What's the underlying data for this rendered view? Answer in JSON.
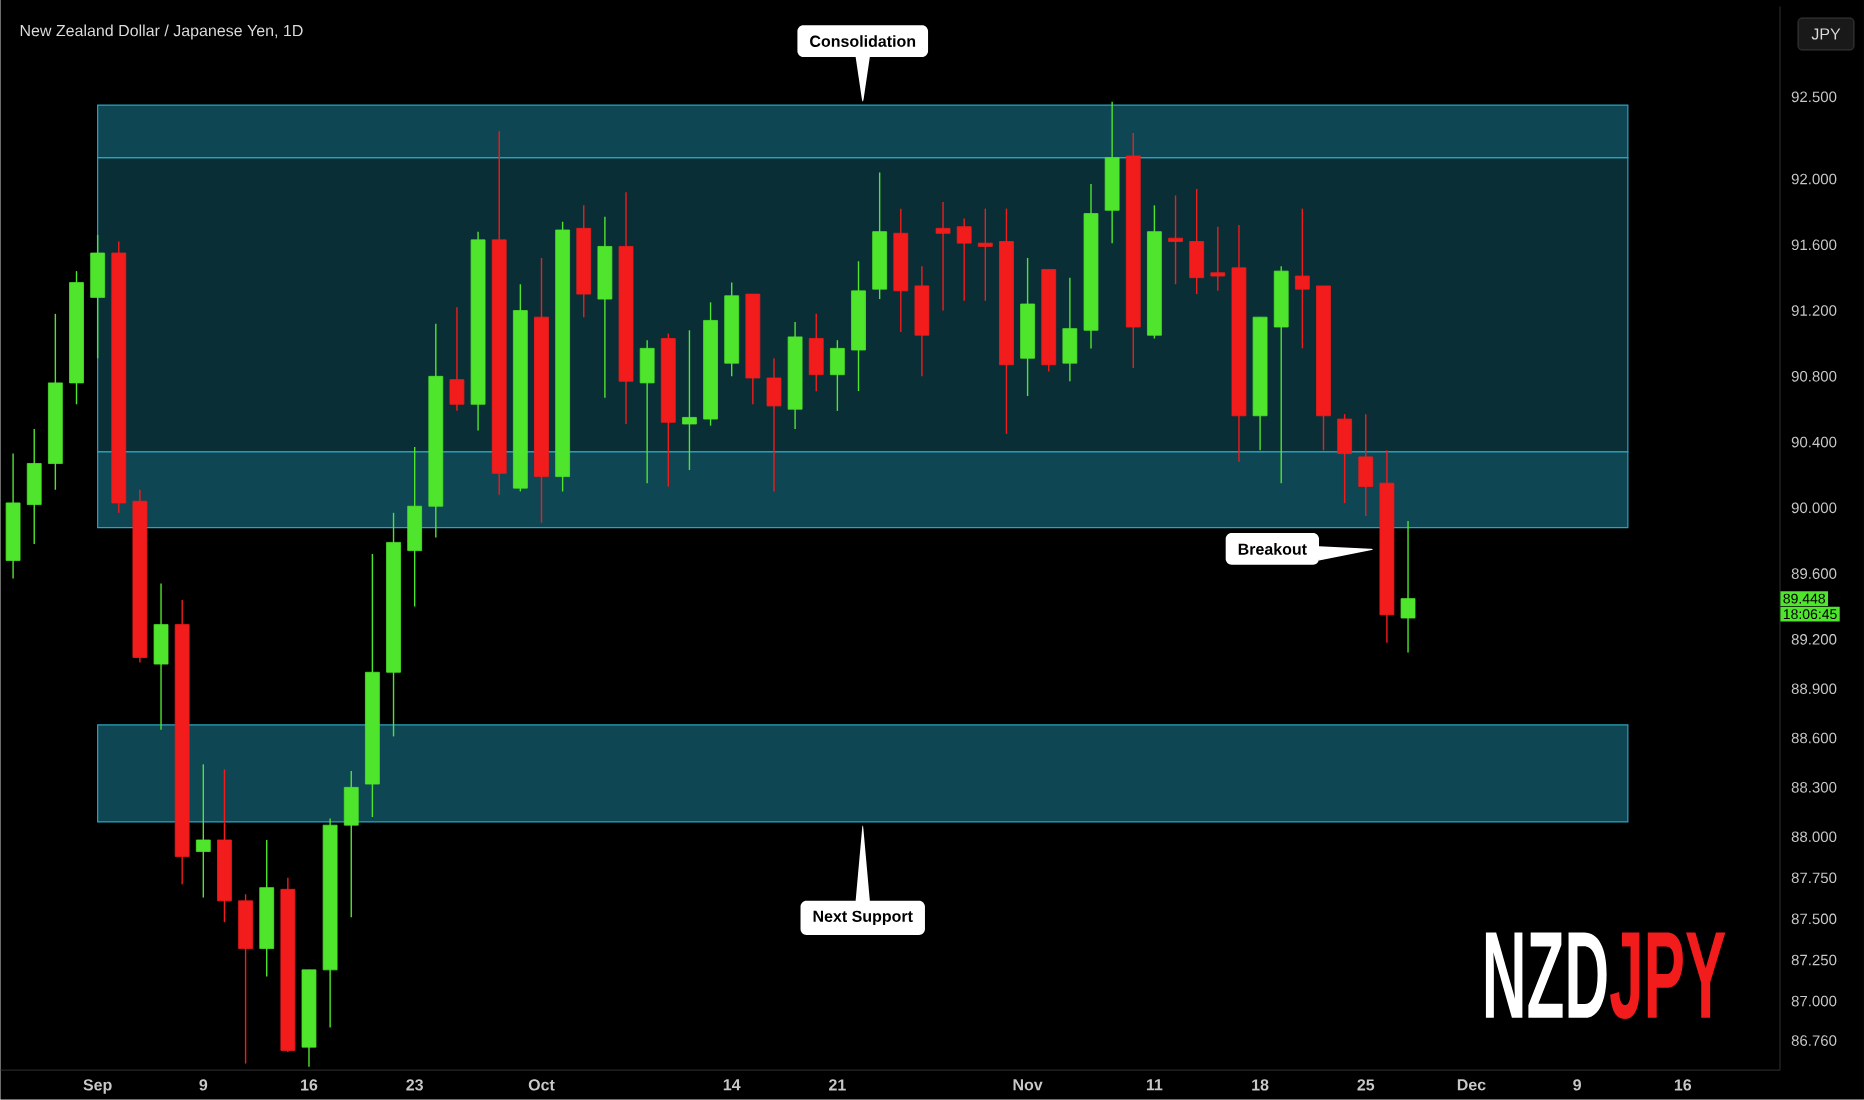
{
  "chart_data": {
    "type": "candlestick",
    "title": "New Zealand Dollar / Japanese Yen, 1D",
    "categories": [
      null,
      null,
      null,
      null,
      "Sep",
      null,
      null,
      null,
      null,
      "9",
      null,
      null,
      null,
      null,
      "16",
      null,
      null,
      null,
      null,
      "23",
      null,
      null,
      null,
      null,
      null,
      "Oct",
      null,
      null,
      null,
      null,
      null,
      null,
      null,
      null,
      "14",
      null,
      null,
      null,
      null,
      "21",
      null,
      null,
      null,
      null,
      null,
      null,
      null,
      null,
      "Nov",
      null,
      null,
      null,
      null,
      null,
      "11",
      null,
      null,
      null,
      null,
      "18",
      null,
      null,
      null,
      null,
      "25",
      null,
      null,
      null,
      null,
      "Dec",
      null,
      null,
      null,
      null,
      "9",
      null,
      null,
      null,
      null,
      "16",
      null,
      null,
      null,
      null
    ],
    "ohlc": [
      [
        89.68,
        90.33,
        89.57,
        90.03
      ],
      [
        90.02,
        90.48,
        89.78,
        90.27
      ],
      [
        90.27,
        91.18,
        90.11,
        90.76
      ],
      [
        90.76,
        91.44,
        90.63,
        91.37
      ],
      [
        91.28,
        91.66,
        90.91,
        91.55
      ],
      [
        91.55,
        91.62,
        89.97,
        90.03
      ],
      [
        90.04,
        90.11,
        89.06,
        89.09
      ],
      [
        89.05,
        89.54,
        88.65,
        89.29
      ],
      [
        89.29,
        89.44,
        87.71,
        87.88
      ],
      [
        87.91,
        88.44,
        87.63,
        87.98
      ],
      [
        87.98,
        88.41,
        87.48,
        87.61
      ],
      [
        87.61,
        87.65,
        86.62,
        87.32
      ],
      [
        87.32,
        87.98,
        87.15,
        87.69
      ],
      [
        87.68,
        87.75,
        86.69,
        86.7
      ],
      [
        86.72,
        87.19,
        86.6,
        87.19
      ],
      [
        87.19,
        88.11,
        86.84,
        88.07
      ],
      [
        88.07,
        88.4,
        87.51,
        88.3
      ],
      [
        88.32,
        89.72,
        88.12,
        89.0
      ],
      [
        89.0,
        89.97,
        88.61,
        89.79
      ],
      [
        89.74,
        90.37,
        89.4,
        90.01
      ],
      [
        90.01,
        91.12,
        89.82,
        90.8
      ],
      [
        90.78,
        91.22,
        90.59,
        90.63
      ],
      [
        90.63,
        91.68,
        90.47,
        91.63
      ],
      [
        91.63,
        92.29,
        90.08,
        90.21
      ],
      [
        90.12,
        91.36,
        90.1,
        91.2
      ],
      [
        91.16,
        91.52,
        89.91,
        90.19
      ],
      [
        90.19,
        91.74,
        90.1,
        91.69
      ],
      [
        91.7,
        91.84,
        91.16,
        91.3
      ],
      [
        91.27,
        91.77,
        90.67,
        91.59
      ],
      [
        91.59,
        91.92,
        90.51,
        90.77
      ],
      [
        90.76,
        91.02,
        90.15,
        90.97
      ],
      [
        91.03,
        91.06,
        90.13,
        90.52
      ],
      [
        90.51,
        91.08,
        90.23,
        90.55
      ],
      [
        90.54,
        91.25,
        90.5,
        91.14
      ],
      [
        90.88,
        91.37,
        90.8,
        91.29
      ],
      [
        91.3,
        91.3,
        90.63,
        90.79
      ],
      [
        90.79,
        90.91,
        90.1,
        90.62
      ],
      [
        90.6,
        91.13,
        90.48,
        91.04
      ],
      [
        91.03,
        91.18,
        90.71,
        90.81
      ],
      [
        90.81,
        91.02,
        90.59,
        90.97
      ],
      [
        90.96,
        91.5,
        90.71,
        91.32
      ],
      [
        91.33,
        92.04,
        91.27,
        91.68
      ],
      [
        91.67,
        91.82,
        91.07,
        91.32
      ],
      [
        91.35,
        91.47,
        90.8,
        91.05
      ],
      [
        91.7,
        91.86,
        91.2,
        91.67
      ],
      [
        91.71,
        91.76,
        91.26,
        91.61
      ],
      [
        91.61,
        91.82,
        91.26,
        91.59
      ],
      [
        91.62,
        91.82,
        90.45,
        90.87
      ],
      [
        90.91,
        91.52,
        90.68,
        91.24
      ],
      [
        91.45,
        91.45,
        90.83,
        90.87
      ],
      [
        90.88,
        91.4,
        90.77,
        91.09
      ],
      [
        91.08,
        91.97,
        90.97,
        91.79
      ],
      [
        91.81,
        92.47,
        91.61,
        92.13
      ],
      [
        92.14,
        92.28,
        90.85,
        91.1
      ],
      [
        91.05,
        91.84,
        91.03,
        91.68
      ],
      [
        91.64,
        91.9,
        91.36,
        91.62
      ],
      [
        91.62,
        91.94,
        91.3,
        91.4
      ],
      [
        91.43,
        91.71,
        91.32,
        91.41
      ],
      [
        91.46,
        91.72,
        90.28,
        90.56
      ],
      [
        90.56,
        91.16,
        90.35,
        91.16
      ],
      [
        91.1,
        91.47,
        90.15,
        91.44
      ],
      [
        91.41,
        91.82,
        90.97,
        91.33
      ],
      [
        91.35,
        91.35,
        90.35,
        90.56
      ],
      [
        90.54,
        90.57,
        90.03,
        90.33
      ],
      [
        90.31,
        90.57,
        89.95,
        90.13
      ],
      [
        90.15,
        90.35,
        89.18,
        89.35
      ],
      [
        89.33,
        89.92,
        89.12,
        89.448
      ],
      null,
      null,
      null,
      null,
      null,
      null,
      null,
      null,
      null,
      null,
      null,
      null,
      null,
      null,
      null,
      null,
      null
    ],
    "ylim": [
      86.58,
      93.05
    ],
    "yticks": [
      {
        "value": 92.5,
        "label": "92.500"
      },
      {
        "value": 92.0,
        "label": "92.000"
      },
      {
        "value": 91.6,
        "label": "91.600"
      },
      {
        "value": 91.2,
        "label": "91.200"
      },
      {
        "value": 90.8,
        "label": "90.800"
      },
      {
        "value": 90.4,
        "label": "90.400"
      },
      {
        "value": 90.0,
        "label": "90.000"
      },
      {
        "value": 89.6,
        "label": "89.600"
      },
      {
        "value": 89.2,
        "label": "89.200"
      },
      {
        "value": 88.9,
        "label": "88.900"
      },
      {
        "value": 88.6,
        "label": "88.600"
      },
      {
        "value": 88.3,
        "label": "88.300"
      },
      {
        "value": 88.0,
        "label": "88.000"
      },
      {
        "value": 87.75,
        "label": "87.750"
      },
      {
        "value": 87.5,
        "label": "87.500"
      },
      {
        "value": 87.25,
        "label": "87.250"
      },
      {
        "value": 87.0,
        "label": "87.000"
      },
      {
        "value": 86.76,
        "label": "86.760"
      }
    ],
    "bands": [
      {
        "axis": "y",
        "from": 90.34,
        "to": 92.13,
        "color": "#0a2e36"
      },
      {
        "axis": "y",
        "from": 92.13,
        "to": 92.45,
        "color": "#0e4654"
      },
      {
        "axis": "y",
        "from": 89.88,
        "to": 90.34,
        "color": "#0e4654"
      },
      {
        "axis": "y",
        "from": 88.09,
        "to": 88.68,
        "color": "#0e4654"
      }
    ],
    "annotations": [
      "Consolidation",
      "Next Support",
      "Breakout",
      {
        "text": "89.448",
        "y": 89.448
      },
      "18:06:45",
      "JPY",
      "NZD",
      "JPY"
    ]
  }
}
